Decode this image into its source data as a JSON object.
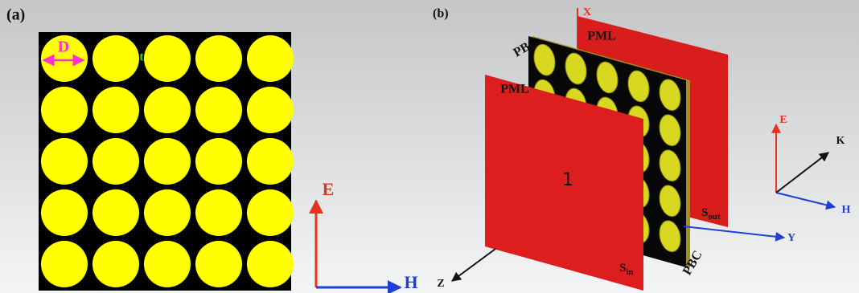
{
  "panel_a": {
    "label": "(a)",
    "diameter_label": "D",
    "gap_label": "t",
    "e_axis": "E",
    "h_axis": "H"
  },
  "panel_b": {
    "label": "(b)",
    "x_axis": "X",
    "y_axis": "Y",
    "z_axis": "Z",
    "back_boundary": "PML",
    "front_boundary": "PML",
    "top_periodic": "PBC",
    "bottom_periodic": "PBC",
    "port": "1",
    "s_out": {
      "main": "S",
      "sub": "out"
    },
    "s_in": {
      "main": "S",
      "sub": "in"
    },
    "e_axis": "E",
    "k_axis": "K",
    "h_axis": "H"
  }
}
